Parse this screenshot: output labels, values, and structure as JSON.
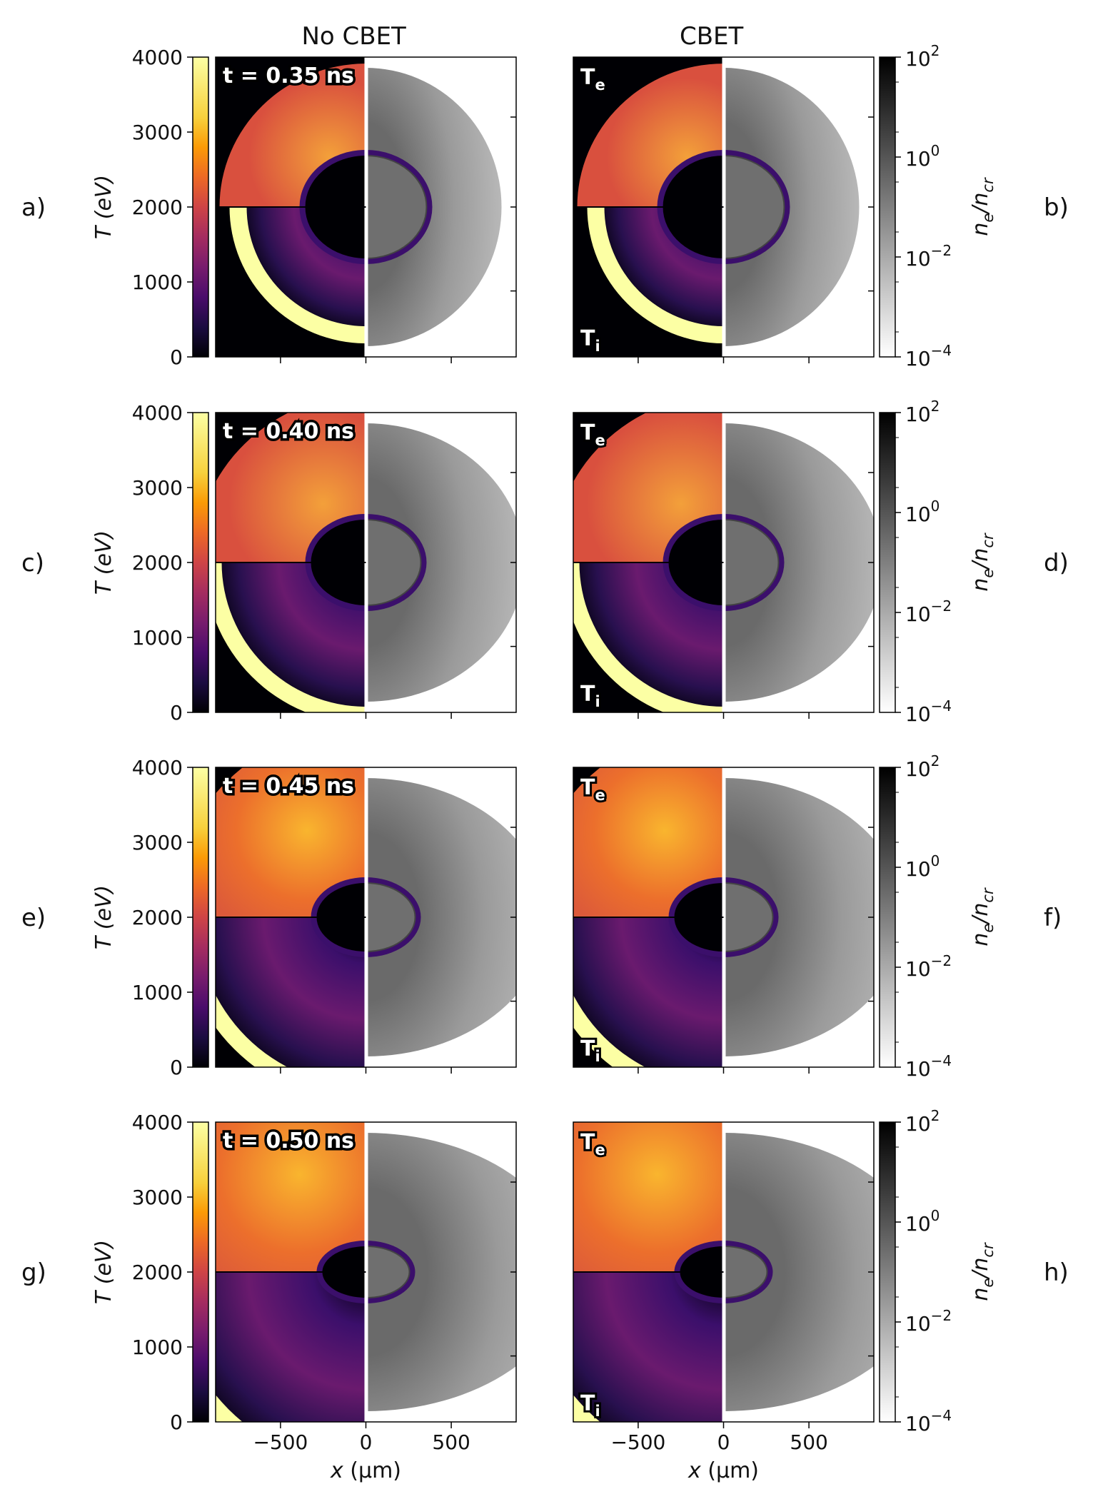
{
  "chart_data": {
    "type": "heatmap",
    "columns": [
      {
        "title": "No CBET"
      },
      {
        "title": "CBET"
      }
    ],
    "panels": [
      {
        "letter": "a)",
        "column": 0,
        "time_label": "t = 0.35 ns",
        "row": 0
      },
      {
        "letter": "b)",
        "column": 1,
        "row": 0
      },
      {
        "letter": "c)",
        "column": 0,
        "time_label": "t = 0.40 ns",
        "row": 1
      },
      {
        "letter": "d)",
        "column": 1,
        "row": 1
      },
      {
        "letter": "e)",
        "column": 0,
        "time_label": "t = 0.45 ns",
        "row": 2
      },
      {
        "letter": "f)",
        "column": 1,
        "row": 2
      },
      {
        "letter": "g)",
        "column": 0,
        "time_label": "t = 0.50 ns",
        "row": 3
      },
      {
        "letter": "h)",
        "column": 1,
        "row": 3
      }
    ],
    "region_labels": {
      "upper_main": "T",
      "upper_sub": "e",
      "lower_main": "T",
      "lower_sub": "i"
    },
    "temperature_colorbar": {
      "label": "T (eV)",
      "ticks": [
        "0",
        "1000",
        "2000",
        "3000",
        "4000"
      ],
      "range": [
        0,
        4000
      ],
      "colormap": "inferno"
    },
    "density_colorbar": {
      "label_main": "n",
      "label_sub1": "e",
      "label_sep": "/n",
      "label_sub2": "cr",
      "ticks": [
        {
          "base": "10",
          "exp": "2"
        },
        {
          "base": "10",
          "exp": "0"
        },
        {
          "base": "10",
          "exp": "−2"
        },
        {
          "base": "10",
          "exp": "−4"
        }
      ],
      "range_log10": [
        -4,
        2
      ],
      "colormap": "gray_r"
    },
    "x_axis": {
      "label_main": "x",
      "label_unit": " (μm)",
      "ticks": [
        "−500",
        "0",
        "500"
      ],
      "tick_values": [
        -500,
        0,
        500
      ],
      "range": [
        -880,
        880
      ]
    }
  }
}
